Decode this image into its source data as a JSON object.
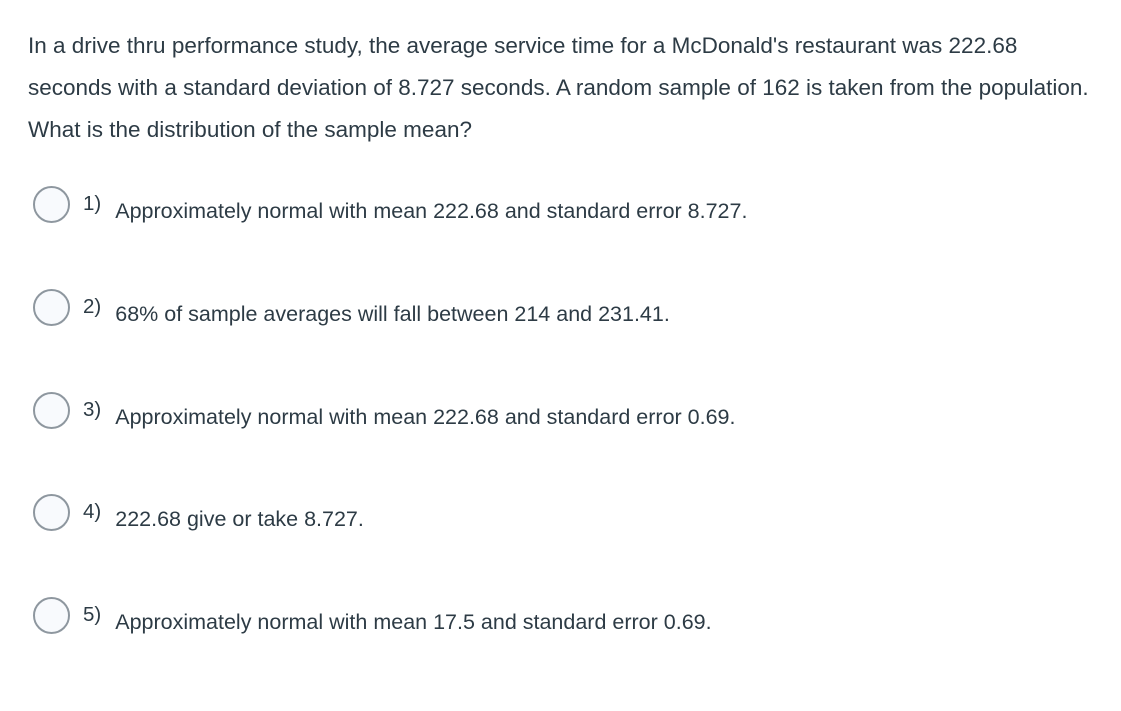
{
  "question": {
    "text": "In a drive thru performance study, the average service time for a McDonald's restaurant was 222.68 seconds with a standard deviation of 8.727 seconds. A random sample of 162 is taken from the population. What is the distribution of the sample mean?"
  },
  "options": [
    {
      "number": "1)",
      "text": "Approximately normal with mean 222.68 and standard error 8.727.",
      "selected": false
    },
    {
      "number": "2)",
      "text": "68% of sample averages will fall between 214 and 231.41.",
      "selected": false
    },
    {
      "number": "3)",
      "text": "Approximately normal with mean 222.68 and standard error 0.69.",
      "selected": false
    },
    {
      "number": "4)",
      "text": "222.68 give or take 8.727.",
      "selected": false
    },
    {
      "number": "5)",
      "text": "Approximately normal with mean 17.5 and standard error 0.69.",
      "selected": false
    }
  ],
  "colors": {
    "background": "#ffffff",
    "text": "#2d3b45",
    "radio_border": "#8e979f",
    "radio_fill": "#f8fafd"
  }
}
